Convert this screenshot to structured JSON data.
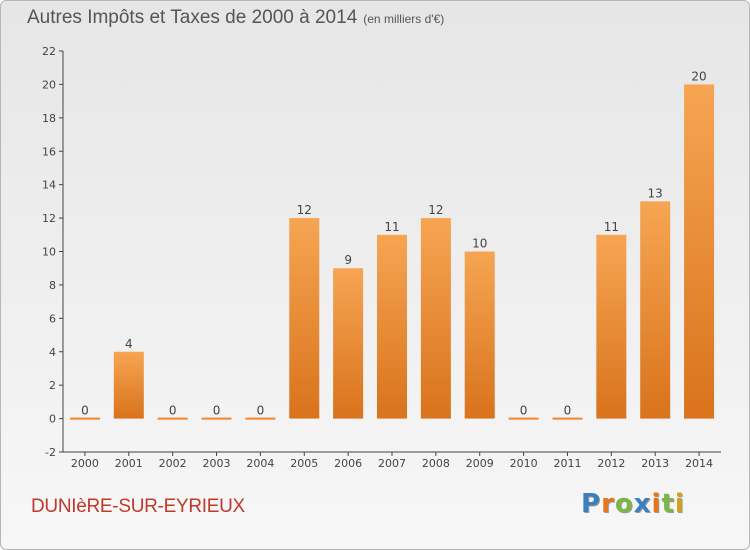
{
  "chart_data": {
    "type": "bar",
    "title": "Autres Impôts et Taxes de 2000 à 2014",
    "subtitle": "(en milliers d'€)",
    "categories": [
      "2000",
      "2001",
      "2002",
      "2003",
      "2004",
      "2005",
      "2006",
      "2007",
      "2008",
      "2009",
      "2010",
      "2011",
      "2012",
      "2013",
      "2014"
    ],
    "values": [
      0,
      4,
      0,
      0,
      0,
      12,
      9,
      11,
      12,
      10,
      0,
      0,
      11,
      13,
      20
    ],
    "ylim": [
      -2,
      22
    ],
    "yticks": [
      -2,
      0,
      2,
      4,
      6,
      8,
      10,
      12,
      14,
      16,
      18,
      20,
      22
    ],
    "grid": false,
    "bar_color": "#f0862a",
    "label_color": "#444444"
  },
  "footer": {
    "commune": "DUNIèRE-SUR-EYRIEUX",
    "commune_color": "#c0392b"
  },
  "logo": {
    "text": "Proxiti",
    "colors": [
      "#3a7fc1",
      "#e8741c",
      "#7ab648",
      "#3a7fc1",
      "#e8741c",
      "#7ab648",
      "#d4a017"
    ]
  }
}
